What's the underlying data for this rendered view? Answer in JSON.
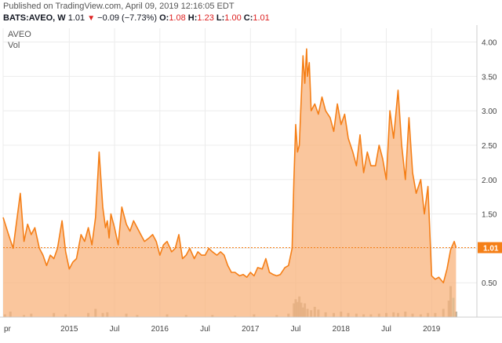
{
  "header": {
    "published": "Published on TradingView.com, April 09, 2019 12:16:05 EDT",
    "symbol": "BATS:AVEO, W",
    "last": "1.01",
    "change": "−0.09 (−7.73%)",
    "open_label": "O:",
    "open": "1.08",
    "high_label": "H:",
    "high": "1.23",
    "low_label": "L:",
    "low": "1.00",
    "close_label": "C:",
    "close": "1.01"
  },
  "legend": {
    "symbol": "AVEO",
    "volume": "Vol"
  },
  "colors": {
    "line": "#f57f17",
    "fill": "#f8b37c",
    "volume": "#a8a08c",
    "last_volume": "#7ec8c0",
    "price_tag": "#f57f17",
    "grid": "#ececec",
    "down": "#dd2222"
  },
  "chart_data": {
    "type": "area",
    "ylim": [
      0,
      4.2
    ],
    "y_ticks": [
      "0.50",
      "1.00",
      "1.50",
      "2.00",
      "2.50",
      "3.00",
      "3.50",
      "4.00"
    ],
    "x_ticks": [
      {
        "label": "pr",
        "t": 2014.27
      },
      {
        "label": "2015",
        "t": 2015.0
      },
      {
        "label": "Jul",
        "t": 2015.5
      },
      {
        "label": "2016",
        "t": 2016.0
      },
      {
        "label": "Jul",
        "t": 2016.5
      },
      {
        "label": "2017",
        "t": 2017.0
      },
      {
        "label": "Jul",
        "t": 2017.5
      },
      {
        "label": "2018",
        "t": 2018.0
      },
      {
        "label": "Jul",
        "t": 2018.5
      },
      {
        "label": "2019",
        "t": 2019.0
      }
    ],
    "x_range": [
      2014.27,
      2019.5
    ],
    "last_price_label": "1.01",
    "last_price": 1.01,
    "series": [
      {
        "x": [
          2014.27,
          2014.33,
          2014.38,
          2014.46,
          2014.5,
          2014.54,
          2014.58,
          2014.62,
          2014.67,
          2014.71,
          2014.75,
          2014.79,
          2014.83,
          2014.87,
          2014.92,
          2014.96,
          2015.0,
          2015.04,
          2015.08,
          2015.13,
          2015.17,
          2015.21,
          2015.25,
          2015.29,
          2015.33,
          2015.37,
          2015.4,
          2015.42,
          2015.44,
          2015.46,
          2015.5,
          2015.54,
          2015.58,
          2015.63,
          2015.67,
          2015.71,
          2015.75,
          2015.79,
          2015.83,
          2015.88,
          2015.92,
          2015.96,
          2016.0,
          2016.04,
          2016.08,
          2016.13,
          2016.17,
          2016.21,
          2016.25,
          2016.29,
          2016.33,
          2016.38,
          2016.42,
          2016.46,
          2016.5,
          2016.54,
          2016.58,
          2016.63,
          2016.67,
          2016.71,
          2016.75,
          2016.79,
          2016.83,
          2016.88,
          2016.92,
          2016.96,
          2017.0,
          2017.04,
          2017.08,
          2017.13,
          2017.17,
          2017.21,
          2017.25,
          2017.29,
          2017.33,
          2017.38,
          2017.42,
          2017.46,
          2017.48,
          2017.5,
          2017.52,
          2017.54,
          2017.58,
          2017.6,
          2017.62,
          2017.63,
          2017.65,
          2017.67,
          2017.71,
          2017.75,
          2017.79,
          2017.83,
          2017.88,
          2017.92,
          2017.96,
          2018.0,
          2018.04,
          2018.08,
          2018.13,
          2018.17,
          2018.21,
          2018.25,
          2018.29,
          2018.33,
          2018.38,
          2018.42,
          2018.46,
          2018.5,
          2018.54,
          2018.58,
          2018.63,
          2018.67,
          2018.71,
          2018.75,
          2018.79,
          2018.83,
          2018.88,
          2018.92,
          2018.96,
          2019.0,
          2019.04,
          2019.08,
          2019.13,
          2019.17,
          2019.21,
          2019.25,
          2019.27
        ],
        "values": [
          1.45,
          1.2,
          1.0,
          1.8,
          1.1,
          1.35,
          1.2,
          1.3,
          1.0,
          0.9,
          0.75,
          0.9,
          0.85,
          1.0,
          1.4,
          0.95,
          0.7,
          0.8,
          0.85,
          1.2,
          1.1,
          1.3,
          1.05,
          1.45,
          2.4,
          1.6,
          1.3,
          1.4,
          1.15,
          1.5,
          1.3,
          1.05,
          1.6,
          1.35,
          1.25,
          1.4,
          1.3,
          1.2,
          1.1,
          1.15,
          1.2,
          1.1,
          0.9,
          1.05,
          1.1,
          0.95,
          1.0,
          1.2,
          0.85,
          0.9,
          1.0,
          0.85,
          0.95,
          0.9,
          0.9,
          1.0,
          0.95,
          0.9,
          0.95,
          0.9,
          0.75,
          0.65,
          0.65,
          0.6,
          0.62,
          0.58,
          0.65,
          0.6,
          0.72,
          0.7,
          0.85,
          0.65,
          0.62,
          0.6,
          0.62,
          0.72,
          0.75,
          1.0,
          2.0,
          2.8,
          2.4,
          2.5,
          3.8,
          3.4,
          3.9,
          3.5,
          3.7,
          3.0,
          3.1,
          2.95,
          3.2,
          3.0,
          2.9,
          2.7,
          3.1,
          2.8,
          2.95,
          2.6,
          2.4,
          2.2,
          2.65,
          2.1,
          2.4,
          2.2,
          2.2,
          2.5,
          2.3,
          2.0,
          3.0,
          2.6,
          3.3,
          2.5,
          2.0,
          2.9,
          2.1,
          1.8,
          2.0,
          1.5,
          1.9,
          0.6,
          0.55,
          0.58,
          0.5,
          0.7,
          0.98,
          1.1,
          1.01
        ]
      }
    ],
    "volume": {
      "x": [
        2014.29,
        2014.35,
        2014.5,
        2014.58,
        2014.83,
        2014.96,
        2015.21,
        2015.29,
        2015.37,
        2015.42,
        2015.63,
        2015.75,
        2016.08,
        2016.29,
        2016.58,
        2016.83,
        2017.04,
        2017.29,
        2017.42,
        2017.48,
        2017.5,
        2017.52,
        2017.54,
        2017.56,
        2017.58,
        2017.6,
        2017.63,
        2017.67,
        2017.71,
        2017.75,
        2017.83,
        2017.92,
        2018.0,
        2018.08,
        2018.17,
        2018.25,
        2018.33,
        2018.42,
        2018.5,
        2018.58,
        2018.63,
        2018.71,
        2018.79,
        2018.88,
        2018.96,
        2019.04,
        2019.13,
        2019.19,
        2019.21,
        2019.24,
        2019.27
      ],
      "values": [
        0.04,
        0.08,
        0.03,
        0.05,
        0.06,
        0.04,
        0.06,
        0.12,
        0.06,
        0.07,
        0.05,
        0.03,
        0.04,
        0.03,
        0.03,
        0.02,
        0.04,
        0.03,
        0.05,
        0.2,
        0.26,
        0.22,
        0.3,
        0.21,
        0.14,
        0.2,
        0.12,
        0.1,
        0.15,
        0.11,
        0.07,
        0.06,
        0.08,
        0.06,
        0.05,
        0.04,
        0.04,
        0.05,
        0.06,
        0.07,
        0.06,
        0.08,
        0.05,
        0.04,
        0.06,
        0.06,
        0.12,
        0.24,
        0.45,
        0.28,
        0.08
      ]
    }
  }
}
